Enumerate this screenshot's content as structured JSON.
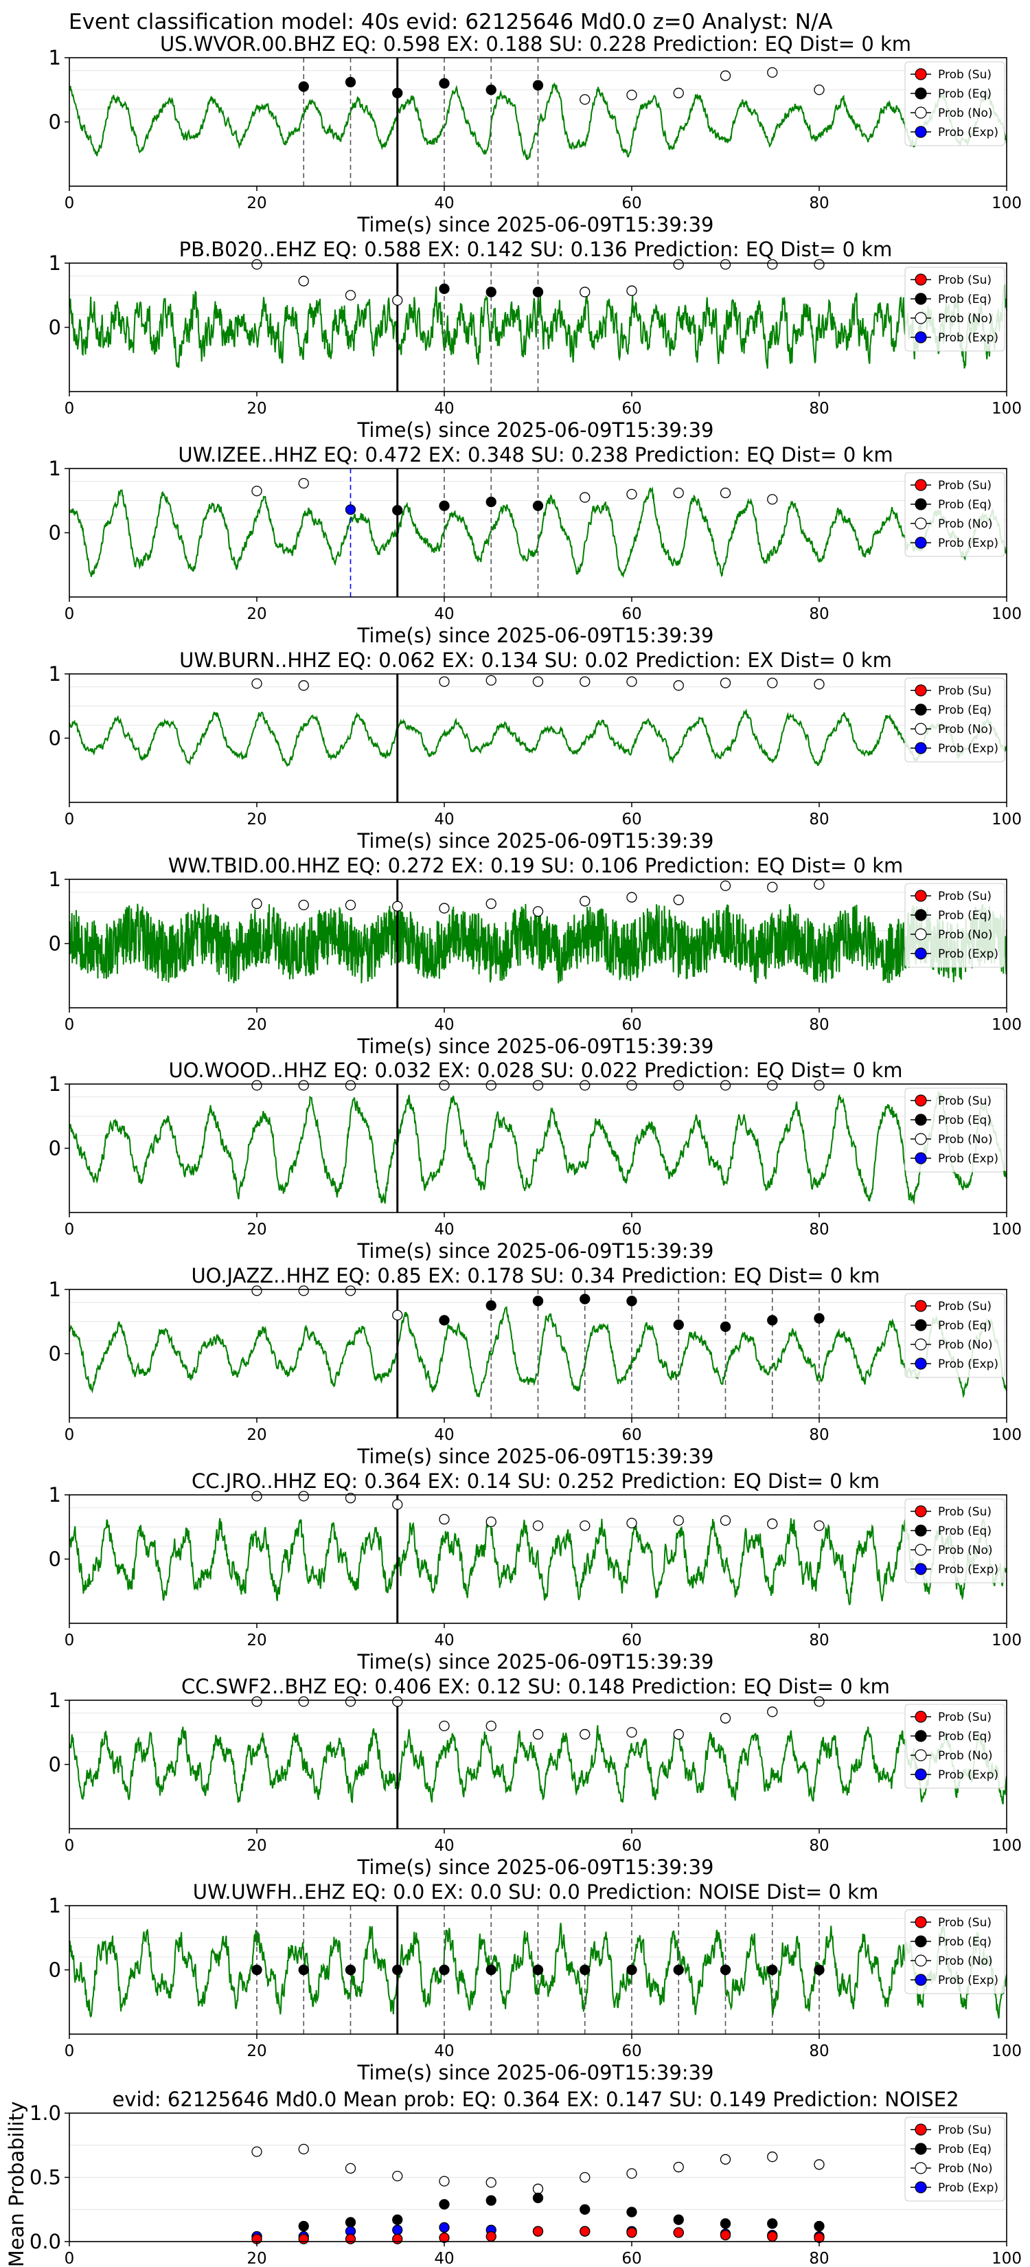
{
  "figure": {
    "suptitle": "Event classification model: 40s evid: 62125646 Md0.0 z=0 Analyst: N/A"
  },
  "colors": {
    "waveform": "#008000",
    "su": "#ff0000",
    "eq": "#000000",
    "no": "#ffffff",
    "exp": "#0000ff",
    "vline": "#000000"
  },
  "legend_labels": [
    "Prob (Su)",
    "Prob (Eq)",
    "Prob (No)",
    "Prob (Exp)"
  ],
  "chart_data": [
    {
      "type": "line",
      "title": "US.WVOR.00.BHZ    EQ: 0.598   EX: 0.188   SU: 0.228    Prediction: EQ     Dist= 0 km",
      "xlabel": "Time(s) since 2025-06-09T15:39:39",
      "xlim": [
        0,
        100
      ],
      "ylim": [
        -1,
        1
      ],
      "xticks": [
        "0",
        "20",
        "40",
        "60",
        "80",
        "100"
      ],
      "yticks": [
        "1",
        "0"
      ],
      "legend": "right",
      "waveform": {
        "style": "low",
        "amp": 0.52,
        "seed": 11
      },
      "arrival_time": 35,
      "series": [
        {
          "name": "Prob (No)",
          "x": [
            55,
            60,
            65,
            70,
            75,
            80
          ],
          "y": [
            0.35,
            0.42,
            0.45,
            0.72,
            0.77,
            0.5
          ]
        },
        {
          "name": "Prob (Eq)",
          "x": [
            25,
            30,
            35,
            40,
            45,
            50
          ],
          "y": [
            0.55,
            0.62,
            0.45,
            0.6,
            0.5,
            0.57
          ]
        }
      ],
      "dashed_lines": [
        25,
        30,
        40,
        45,
        50
      ],
      "blue_lines": []
    },
    {
      "type": "line",
      "title": "PB.B020..EHZ   EQ: 0.588  EX: 0.142  SU: 0.136   Prediction: EQ     Dist= 0 km",
      "xlabel": "Time(s) since 2025-06-09T15:39:39",
      "xlim": [
        0,
        100
      ],
      "ylim": [
        -1,
        1
      ],
      "xticks": [
        "0",
        "20",
        "40",
        "60",
        "80",
        "100"
      ],
      "yticks": [
        "1",
        "0"
      ],
      "legend": "right",
      "waveform": {
        "style": "high",
        "amp": 0.5,
        "seed": 23
      },
      "arrival_time": 35,
      "series": [
        {
          "name": "Prob (No)",
          "x": [
            20,
            25,
            30,
            35,
            55,
            60,
            65,
            70,
            75,
            80
          ],
          "y": [
            0.98,
            0.72,
            0.5,
            0.42,
            0.55,
            0.57,
            0.98,
            0.98,
            0.98,
            0.98
          ]
        },
        {
          "name": "Prob (Eq)",
          "x": [
            40,
            45,
            50
          ],
          "y": [
            0.6,
            0.55,
            0.55
          ]
        }
      ],
      "dashed_lines": [
        40,
        45,
        50
      ],
      "blue_lines": []
    },
    {
      "type": "line",
      "title": "UW.IZEE..HHZ   EQ: 0.472  EX: 0.348  SU: 0.238   Prediction: EQ     Dist= 0 km",
      "xlabel": "Time(s) since 2025-06-09T15:39:39",
      "xlim": [
        0,
        100
      ],
      "ylim": [
        -1,
        1
      ],
      "xticks": [
        "0",
        "20",
        "40",
        "60",
        "80",
        "100"
      ],
      "yticks": [
        "1",
        "0"
      ],
      "legend": "right",
      "waveform": {
        "style": "low",
        "amp": 0.6,
        "seed": 37
      },
      "arrival_time": 35,
      "series": [
        {
          "name": "Prob (No)",
          "x": [
            20,
            25,
            55,
            60,
            65,
            70,
            75
          ],
          "y": [
            0.65,
            0.77,
            0.55,
            0.6,
            0.62,
            0.62,
            0.52
          ]
        },
        {
          "name": "Prob (Eq)",
          "x": [
            35,
            40,
            45,
            50
          ],
          "y": [
            0.35,
            0.42,
            0.48,
            0.42
          ]
        },
        {
          "name": "Prob (Exp)",
          "x": [
            30
          ],
          "y": [
            0.36
          ]
        }
      ],
      "dashed_lines": [
        40,
        45,
        50
      ],
      "blue_lines": [
        30
      ]
    },
    {
      "type": "line",
      "title": "UW.BURN..HHZ   EQ: 0.062  EX: 0.134  SU: 0.02   Prediction: EX     Dist= 0 km",
      "xlabel": "Time(s) since 2025-06-09T15:39:39",
      "xlim": [
        0,
        100
      ],
      "ylim": [
        -1,
        1
      ],
      "xticks": [
        "0",
        "20",
        "40",
        "60",
        "80",
        "100"
      ],
      "yticks": [
        "1",
        "0"
      ],
      "legend": "right",
      "waveform": {
        "style": "low",
        "amp": 0.38,
        "seed": 41
      },
      "arrival_time": 35,
      "series": [
        {
          "name": "Prob (No)",
          "x": [
            20,
            25,
            40,
            45,
            50,
            55,
            60,
            65,
            70,
            75,
            80
          ],
          "y": [
            0.85,
            0.82,
            0.88,
            0.9,
            0.88,
            0.88,
            0.88,
            0.82,
            0.86,
            0.86,
            0.84
          ]
        }
      ],
      "dashed_lines": [],
      "blue_lines": []
    },
    {
      "type": "line",
      "title": "WW.TBID.00.HHZ   EQ: 0.272  EX: 0.19  SU: 0.106   Prediction: EQ     Dist= 0 km",
      "xlabel": "Time(s) since 2025-06-09T15:39:39",
      "xlim": [
        0,
        100
      ],
      "ylim": [
        -1,
        1
      ],
      "xticks": [
        "0",
        "20",
        "40",
        "60",
        "80",
        "100"
      ],
      "yticks": [
        "1",
        "0"
      ],
      "legend": "right",
      "waveform": {
        "style": "dense",
        "amp": 0.6,
        "seed": 53
      },
      "arrival_time": 35,
      "series": [
        {
          "name": "Prob (No)",
          "x": [
            20,
            25,
            30,
            35,
            40,
            45,
            50,
            55,
            60,
            65,
            70,
            75,
            80
          ],
          "y": [
            0.62,
            0.6,
            0.6,
            0.58,
            0.55,
            0.62,
            0.5,
            0.66,
            0.72,
            0.68,
            0.9,
            0.88,
            0.92
          ]
        }
      ],
      "dashed_lines": [],
      "blue_lines": []
    },
    {
      "type": "line",
      "title": "UO.WOOD..HHZ   EQ: 0.032  EX: 0.028  SU: 0.022   Prediction: EQ     Dist= 0 km",
      "xlabel": "Time(s) since 2025-06-09T15:39:39",
      "xlim": [
        0,
        100
      ],
      "ylim": [
        -1,
        1
      ],
      "xticks": [
        "0",
        "20",
        "40",
        "60",
        "80",
        "100"
      ],
      "yticks": [
        "1",
        "0"
      ],
      "legend": "right",
      "waveform": {
        "style": "low",
        "amp": 0.78,
        "seed": 67
      },
      "arrival_time": 35,
      "series": [
        {
          "name": "Prob (No)",
          "x": [
            20,
            25,
            30,
            40,
            45,
            50,
            55,
            60,
            65,
            70,
            75,
            80
          ],
          "y": [
            0.98,
            0.98,
            0.98,
            0.98,
            0.98,
            0.98,
            0.98,
            0.98,
            0.98,
            0.98,
            0.98,
            0.98
          ]
        }
      ],
      "dashed_lines": [],
      "blue_lines": []
    },
    {
      "type": "line",
      "title": "UO.JAZZ..HHZ   EQ: 0.85  EX: 0.178  SU: 0.34   Prediction: EQ     Dist= 0 km",
      "xlabel": "Time(s) since 2025-06-09T15:39:39",
      "xlim": [
        0,
        100
      ],
      "ylim": [
        -1,
        1
      ],
      "xticks": [
        "0",
        "20",
        "40",
        "60",
        "80",
        "100"
      ],
      "yticks": [
        "1",
        "0"
      ],
      "legend": "right",
      "waveform": {
        "style": "low",
        "amp": 0.6,
        "seed": 71
      },
      "arrival_time": 35,
      "series": [
        {
          "name": "Prob (No)",
          "x": [
            20,
            25,
            30,
            35
          ],
          "y": [
            0.98,
            0.98,
            0.98,
            0.6
          ]
        },
        {
          "name": "Prob (Eq)",
          "x": [
            40,
            45,
            50,
            55,
            60,
            65,
            70,
            75,
            80
          ],
          "y": [
            0.52,
            0.75,
            0.82,
            0.85,
            0.82,
            0.45,
            0.42,
            0.52,
            0.55
          ]
        }
      ],
      "dashed_lines": [
        45,
        50,
        55,
        60,
        65,
        70,
        75,
        80
      ],
      "blue_lines": []
    },
    {
      "type": "line",
      "title": "CC.JRO..HHZ   EQ: 0.364  EX: 0.14  SU: 0.252   Prediction: EQ     Dist= 0 km",
      "xlabel": "Time(s) since 2025-06-09T15:39:39",
      "xlim": [
        0,
        100
      ],
      "ylim": [
        -1,
        1
      ],
      "xticks": [
        "0",
        "20",
        "40",
        "60",
        "80",
        "100"
      ],
      "yticks": [
        "1",
        "0"
      ],
      "legend": "right",
      "waveform": {
        "style": "mid",
        "amp": 0.55,
        "seed": 83
      },
      "arrival_time": 35,
      "series": [
        {
          "name": "Prob (No)",
          "x": [
            20,
            25,
            30,
            35,
            40,
            45,
            50,
            55,
            60,
            65,
            70,
            75,
            80
          ],
          "y": [
            0.98,
            0.98,
            0.95,
            0.85,
            0.62,
            0.58,
            0.52,
            0.52,
            0.56,
            0.6,
            0.6,
            0.55,
            0.52
          ]
        }
      ],
      "dashed_lines": [],
      "blue_lines": []
    },
    {
      "type": "line",
      "title": "CC.SWF2..BHZ   EQ: 0.406  EX: 0.12  SU: 0.148   Prediction: EQ     Dist= 0 km",
      "xlabel": "Time(s) since 2025-06-09T15:39:39",
      "xlim": [
        0,
        100
      ],
      "ylim": [
        -1,
        1
      ],
      "xticks": [
        "0",
        "20",
        "40",
        "60",
        "80",
        "100"
      ],
      "yticks": [
        "1",
        "0"
      ],
      "legend": "right",
      "waveform": {
        "style": "mid",
        "amp": 0.5,
        "seed": 97
      },
      "arrival_time": 35,
      "series": [
        {
          "name": "Prob (No)",
          "x": [
            20,
            25,
            30,
            35,
            40,
            45,
            50,
            55,
            60,
            65,
            70,
            75,
            80
          ],
          "y": [
            0.98,
            0.98,
            0.98,
            0.98,
            0.6,
            0.6,
            0.47,
            0.47,
            0.5,
            0.47,
            0.72,
            0.82,
            0.98
          ]
        }
      ],
      "dashed_lines": [],
      "blue_lines": []
    },
    {
      "type": "line",
      "title": "UW.UWFH..EHZ   EQ: 0.0  EX: 0.0  SU: 0.0   Prediction: NOISE    Dist= 0 km",
      "xlabel": "Time(s) since 2025-06-09T15:39:39",
      "xlim": [
        0,
        100
      ],
      "ylim": [
        -1,
        1
      ],
      "xticks": [
        "0",
        "20",
        "40",
        "60",
        "80",
        "100"
      ],
      "yticks": [
        "1",
        "0"
      ],
      "legend": "right",
      "waveform": {
        "style": "mid",
        "amp": 0.6,
        "seed": 101
      },
      "arrival_time": 35,
      "series": [
        {
          "name": "Prob (Eq)",
          "x": [
            20,
            25,
            30,
            35,
            40,
            45,
            50,
            55,
            60,
            65,
            70,
            75,
            80
          ],
          "y": [
            0,
            0,
            0,
            0,
            0,
            0,
            0,
            0,
            0,
            0,
            0,
            0,
            0
          ]
        }
      ],
      "dashed_lines": [
        20,
        25,
        30,
        40,
        45,
        50,
        55,
        60,
        65,
        70,
        75,
        80
      ],
      "blue_lines": []
    },
    {
      "type": "scatter",
      "title": "evid: 62125646  Md0.0   Mean prob:   EQ: 0.364  EX: 0.147  SU: 0.149   Prediction: NOISE2",
      "ylabel": "Mean Probability",
      "xlim": [
        0,
        100
      ],
      "ylim": [
        0,
        1
      ],
      "xticks": [
        "0",
        "20",
        "40",
        "60",
        "80",
        "100"
      ],
      "yticks": [
        "0.0",
        "0.5",
        "1.0"
      ],
      "grid": true,
      "legend": "right",
      "x": [
        20,
        25,
        30,
        35,
        40,
        45,
        50,
        55,
        60,
        65,
        70,
        75,
        80
      ],
      "series": [
        {
          "name": "Prob (No)",
          "y": [
            0.7,
            0.72,
            0.57,
            0.51,
            0.47,
            0.46,
            0.41,
            0.5,
            0.53,
            0.58,
            0.64,
            0.66,
            0.6
          ]
        },
        {
          "name": "Prob (Eq)",
          "y": [
            0.04,
            0.12,
            0.15,
            0.17,
            0.29,
            0.32,
            0.34,
            0.25,
            0.23,
            0.17,
            0.14,
            0.14,
            0.12
          ]
        },
        {
          "name": "Prob (Exp)",
          "y": [
            0.04,
            0.04,
            0.08,
            0.09,
            0.11,
            0.09,
            0.08,
            0.08,
            0.08,
            0.07,
            0.06,
            0.05,
            0.04
          ]
        },
        {
          "name": "Prob (Su)",
          "y": [
            0.02,
            0.02,
            0.02,
            0.02,
            0.03,
            0.04,
            0.08,
            0.08,
            0.07,
            0.07,
            0.05,
            0.04,
            0.03
          ]
        }
      ]
    }
  ]
}
